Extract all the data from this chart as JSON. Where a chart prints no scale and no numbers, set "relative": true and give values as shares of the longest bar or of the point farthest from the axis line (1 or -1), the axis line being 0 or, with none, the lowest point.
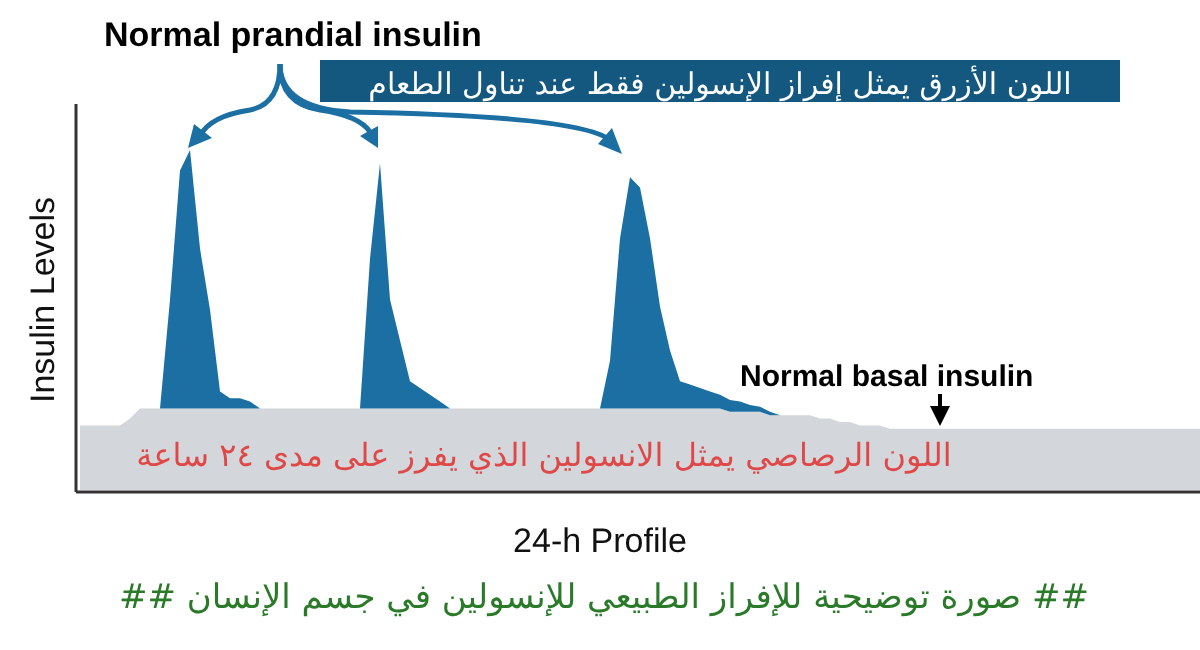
{
  "chart_data": {
    "type": "area",
    "stacked": true,
    "relative": true,
    "xlabel": "24-h Profile",
    "ylabel": "Insulin Levels",
    "categories": [
      null,
      null,
      null,
      null,
      null,
      null,
      null,
      null,
      null,
      null,
      null,
      null,
      null,
      null,
      null,
      null,
      null,
      null,
      null,
      null,
      null,
      null,
      null,
      null,
      null,
      null,
      null,
      null,
      null,
      null,
      null,
      null,
      null,
      null,
      null,
      null,
      null,
      null,
      null,
      null,
      null,
      null,
      null,
      null,
      null,
      null,
      null,
      null,
      null,
      null,
      null,
      null,
      null,
      null,
      null,
      null,
      null,
      null,
      null,
      null,
      null,
      null,
      null,
      null,
      null,
      null,
      null,
      null,
      null,
      null,
      null,
      null,
      null,
      null,
      null,
      null,
      null,
      null,
      null,
      null,
      null,
      null,
      null,
      null,
      null,
      null,
      null,
      null,
      null,
      null,
      null,
      null,
      null,
      null,
      null,
      null,
      null,
      null,
      null,
      null,
      null,
      null,
      null,
      null,
      null,
      null,
      null,
      null,
      null,
      null,
      null,
      null,
      null
    ],
    "series": [
      {
        "color": "#d3d6da",
        "values": [
          0.19,
          0.19,
          0.19,
          0.19,
          0.19,
          0.21,
          0.24,
          0.24,
          0.24,
          0.24,
          0.24,
          0.24,
          0.24,
          0.24,
          0.24,
          0.24,
          0.24,
          0.24,
          0.24,
          0.24,
          0.24,
          0.24,
          0.24,
          0.24,
          0.24,
          0.24,
          0.24,
          0.24,
          0.24,
          0.24,
          0.24,
          0.24,
          0.24,
          0.24,
          0.24,
          0.24,
          0.24,
          0.24,
          0.24,
          0.24,
          0.24,
          0.24,
          0.24,
          0.24,
          0.24,
          0.24,
          0.24,
          0.24,
          0.24,
          0.24,
          0.24,
          0.24,
          0.24,
          0.24,
          0.24,
          0.24,
          0.24,
          0.24,
          0.24,
          0.24,
          0.24,
          0.24,
          0.24,
          0.24,
          0.24,
          0.23,
          0.23,
          0.23,
          0.23,
          0.22,
          0.22,
          0.22,
          0.22,
          0.22,
          0.21,
          0.21,
          0.2,
          0.2,
          0.19,
          0.19,
          0.19,
          0.18,
          0.18,
          0.18,
          0.18,
          0.18,
          0.18,
          0.18,
          0.18,
          0.18,
          0.18,
          0.18,
          0.18,
          0.18,
          0.18,
          0.18,
          0.18,
          0.18,
          0.18,
          0.18,
          0.18,
          0.18,
          0.18,
          0.18,
          0.18,
          0.18,
          0.18,
          0.18,
          0.18,
          0.18,
          0.18,
          0.18,
          0.18
        ]
      },
      {
        "color": "#1b6fa3",
        "values": [
          0,
          0,
          0,
          0,
          0,
          0,
          0,
          0,
          0,
          0.32,
          0.7,
          0.76,
          0.47,
          0.29,
          0.05,
          0.03,
          0.03,
          0.02,
          0,
          0,
          0,
          0,
          0,
          0,
          0,
          0,
          0,
          0,
          0,
          0.44,
          0.72,
          0.32,
          0.2,
          0.08,
          0.06,
          0.04,
          0.02,
          0,
          0,
          0,
          0,
          0,
          0,
          0,
          0,
          0,
          0,
          0,
          0,
          0,
          0,
          0,
          0,
          0.14,
          0.5,
          0.68,
          0.65,
          0.5,
          0.3,
          0.17,
          0.08,
          0.07,
          0.06,
          0.05,
          0.04,
          0.035,
          0.03,
          0.02,
          0.015,
          0.01,
          0,
          0,
          0,
          0,
          0,
          0,
          0,
          0,
          0,
          0,
          0,
          0,
          0,
          0,
          0,
          0,
          0,
          0,
          0,
          0,
          0,
          0,
          0,
          0,
          0,
          0,
          0,
          0,
          0,
          0,
          0,
          0,
          0,
          0,
          0,
          0,
          0,
          0,
          0,
          0,
          0,
          0,
          0
        ]
      }
    ],
    "annotations": [
      "Normal prandial insulin",
      "اللون الأزرق يمثل إفراز الإنسولين فقط عند تناول الطعام",
      "Normal basal insulin",
      "اللون الرصاصي يمثل الانسولين الذي يفرز على مدى ٢٤ ساعة",
      "## صورة توضيحية للإفراز الطبيعي للإنسولين في جسم الإنسان  ##"
    ]
  }
}
